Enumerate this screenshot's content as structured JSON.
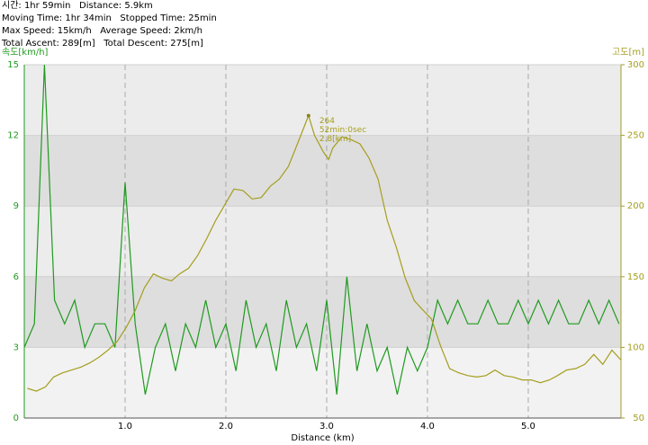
{
  "stats": [
    "시간: 1hr 59min   Distance: 5.9km",
    "Moving Time: 1hr 34min   Stopped Time: 25min",
    "Max Speed: 15km/h   Average Speed: 2km/h",
    "Total Ascent: 289[m]   Total Descent: 275[m]"
  ],
  "chart_data": {
    "type": "line",
    "y_label": "속도[km/h]",
    "y2_label": "고도[m]",
    "x_label": "Distance (km)",
    "xlim": [
      0,
      5.92
    ],
    "xticks": [
      {
        "value": 1,
        "label": "1.0"
      },
      {
        "value": 2,
        "label": "2.0"
      },
      {
        "value": 3,
        "label": "3.0"
      },
      {
        "value": 4,
        "label": "4.0"
      },
      {
        "value": 5,
        "label": "5.0"
      }
    ],
    "ylim": [
      0,
      15
    ],
    "yticks": [
      0,
      3,
      6,
      9,
      12,
      15
    ],
    "y2lim": [
      50,
      300
    ],
    "y2ticks": [
      50,
      100,
      150,
      200,
      250,
      300
    ],
    "grid": true,
    "series": [
      {
        "color": "#1f9a1f",
        "axis": "y",
        "x": [
          0.0,
          0.1,
          0.2,
          0.3,
          0.4,
          0.5,
          0.6,
          0.7,
          0.8,
          0.9,
          1.0,
          1.1,
          1.2,
          1.3,
          1.4,
          1.5,
          1.6,
          1.7,
          1.8,
          1.9,
          2.0,
          2.1,
          2.2,
          2.3,
          2.4,
          2.5,
          2.6,
          2.7,
          2.8,
          2.9,
          3.0,
          3.1,
          3.2,
          3.3,
          3.4,
          3.5,
          3.6,
          3.7,
          3.8,
          3.9,
          4.0,
          4.1,
          4.2,
          4.3,
          4.4,
          4.5,
          4.6,
          4.7,
          4.8,
          4.9,
          5.0,
          5.1,
          5.2,
          5.3,
          5.4,
          5.5,
          5.6,
          5.7,
          5.8,
          5.9
        ],
        "values": [
          3,
          4,
          15,
          5,
          4,
          5,
          3,
          4,
          4,
          3,
          10,
          4,
          1,
          3,
          4,
          2,
          4,
          3,
          5,
          3,
          4,
          2,
          5,
          3,
          4,
          2,
          5,
          3,
          4,
          2,
          5,
          1,
          6,
          2,
          4,
          2,
          3,
          1,
          3,
          2,
          3,
          5,
          4,
          5,
          4,
          4,
          5,
          4,
          4,
          5,
          4,
          5,
          4,
          5,
          4,
          4,
          5,
          4,
          5,
          4
        ]
      },
      {
        "color": "#a59e1e",
        "axis": "y2",
        "x": [
          0.03,
          0.12,
          0.21,
          0.29,
          0.38,
          0.47,
          0.56,
          0.65,
          0.74,
          0.83,
          0.92,
          1.01,
          1.1,
          1.19,
          1.28,
          1.37,
          1.46,
          1.54,
          1.63,
          1.72,
          1.81,
          1.9,
          1.99,
          2.08,
          2.17,
          2.26,
          2.35,
          2.44,
          2.53,
          2.62,
          2.71,
          2.82,
          2.88,
          2.97,
          3.02,
          3.06,
          3.15,
          3.24,
          3.33,
          3.42,
          3.51,
          3.6,
          3.69,
          3.78,
          3.87,
          3.96,
          4.04,
          4.13,
          4.22,
          4.31,
          4.4,
          4.49,
          4.58,
          4.67,
          4.76,
          4.85,
          4.94,
          5.03,
          5.12,
          5.21,
          5.29,
          5.38,
          5.47,
          5.56,
          5.65,
          5.74,
          5.83,
          5.92
        ],
        "values": [
          71,
          69,
          72,
          79,
          82,
          84,
          86,
          89,
          93,
          98,
          104,
          114,
          126,
          142,
          152,
          149,
          147,
          152,
          156,
          165,
          177,
          190,
          201,
          212,
          211,
          205,
          206,
          214,
          219,
          228,
          244,
          264,
          250,
          238,
          233,
          241,
          249,
          247,
          244,
          234,
          219,
          190,
          171,
          149,
          133,
          126,
          120,
          101,
          85,
          82,
          80,
          79,
          80,
          84,
          80,
          79,
          77,
          77,
          75,
          77,
          80,
          84,
          85,
          88,
          95,
          88,
          98,
          91
        ]
      }
    ],
    "annotation": {
      "x": 2.82,
      "y": 264,
      "lines": [
        "264",
        "52min:0sec",
        "2.8[km]"
      ]
    }
  }
}
